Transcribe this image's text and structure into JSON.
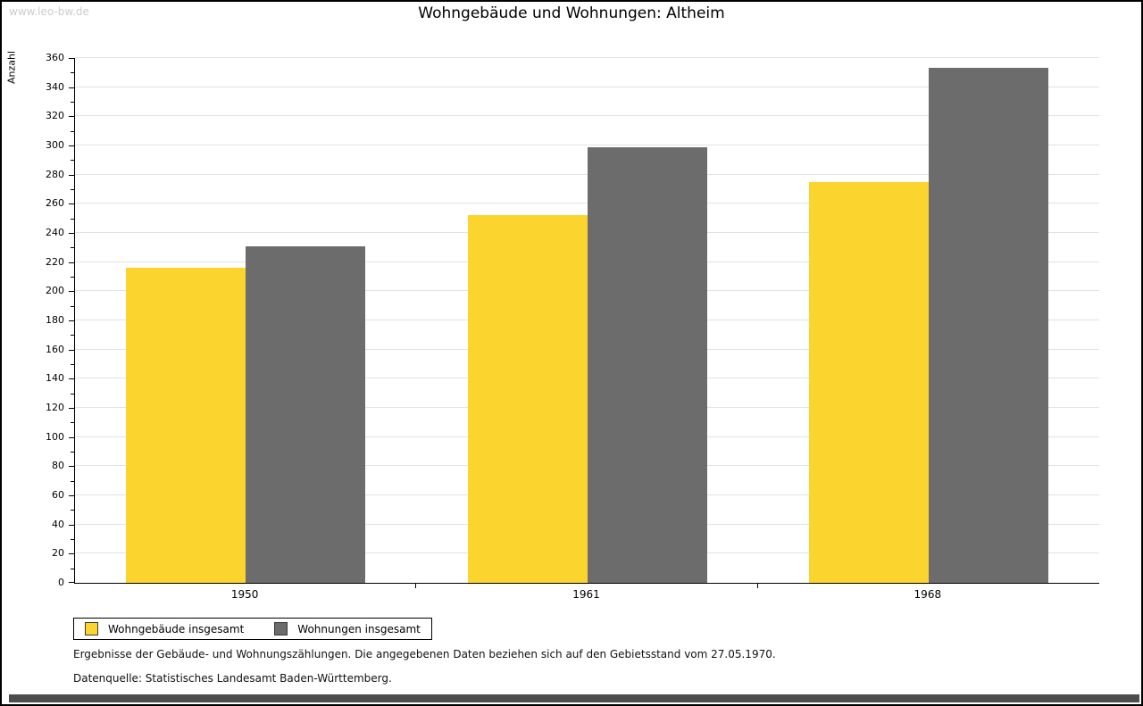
{
  "watermark": "www.leo-bw.de",
  "chart_data": {
    "type": "bar",
    "title": "Wohngebäude und Wohnungen: Altheim",
    "ylabel": "Anzahl",
    "xlabel": "",
    "categories": [
      "1950",
      "1961",
      "1968"
    ],
    "series": [
      {
        "name": "Wohngebäude insgesamt",
        "color": "#FCD42E",
        "values": [
          216,
          252,
          275
        ]
      },
      {
        "name": "Wohnungen insgesamt",
        "color": "#6C6C6C",
        "values": [
          231,
          299,
          353
        ]
      }
    ],
    "ylim": [
      0,
      360
    ],
    "ytick_step": 20,
    "minor_tick_step": 10,
    "grid": true,
    "gridline_color": "#E2E2E2",
    "legend_position": "bottom-left"
  },
  "footnotes": {
    "line1": "Ergebnisse der Gebäude- und Wohnungszählungen. Die angegebenen Daten beziehen sich auf den Gebietsstand vom 27.05.1970.",
    "line2": "Datenquelle: Statistisches Landesamt Baden-Württemberg."
  }
}
